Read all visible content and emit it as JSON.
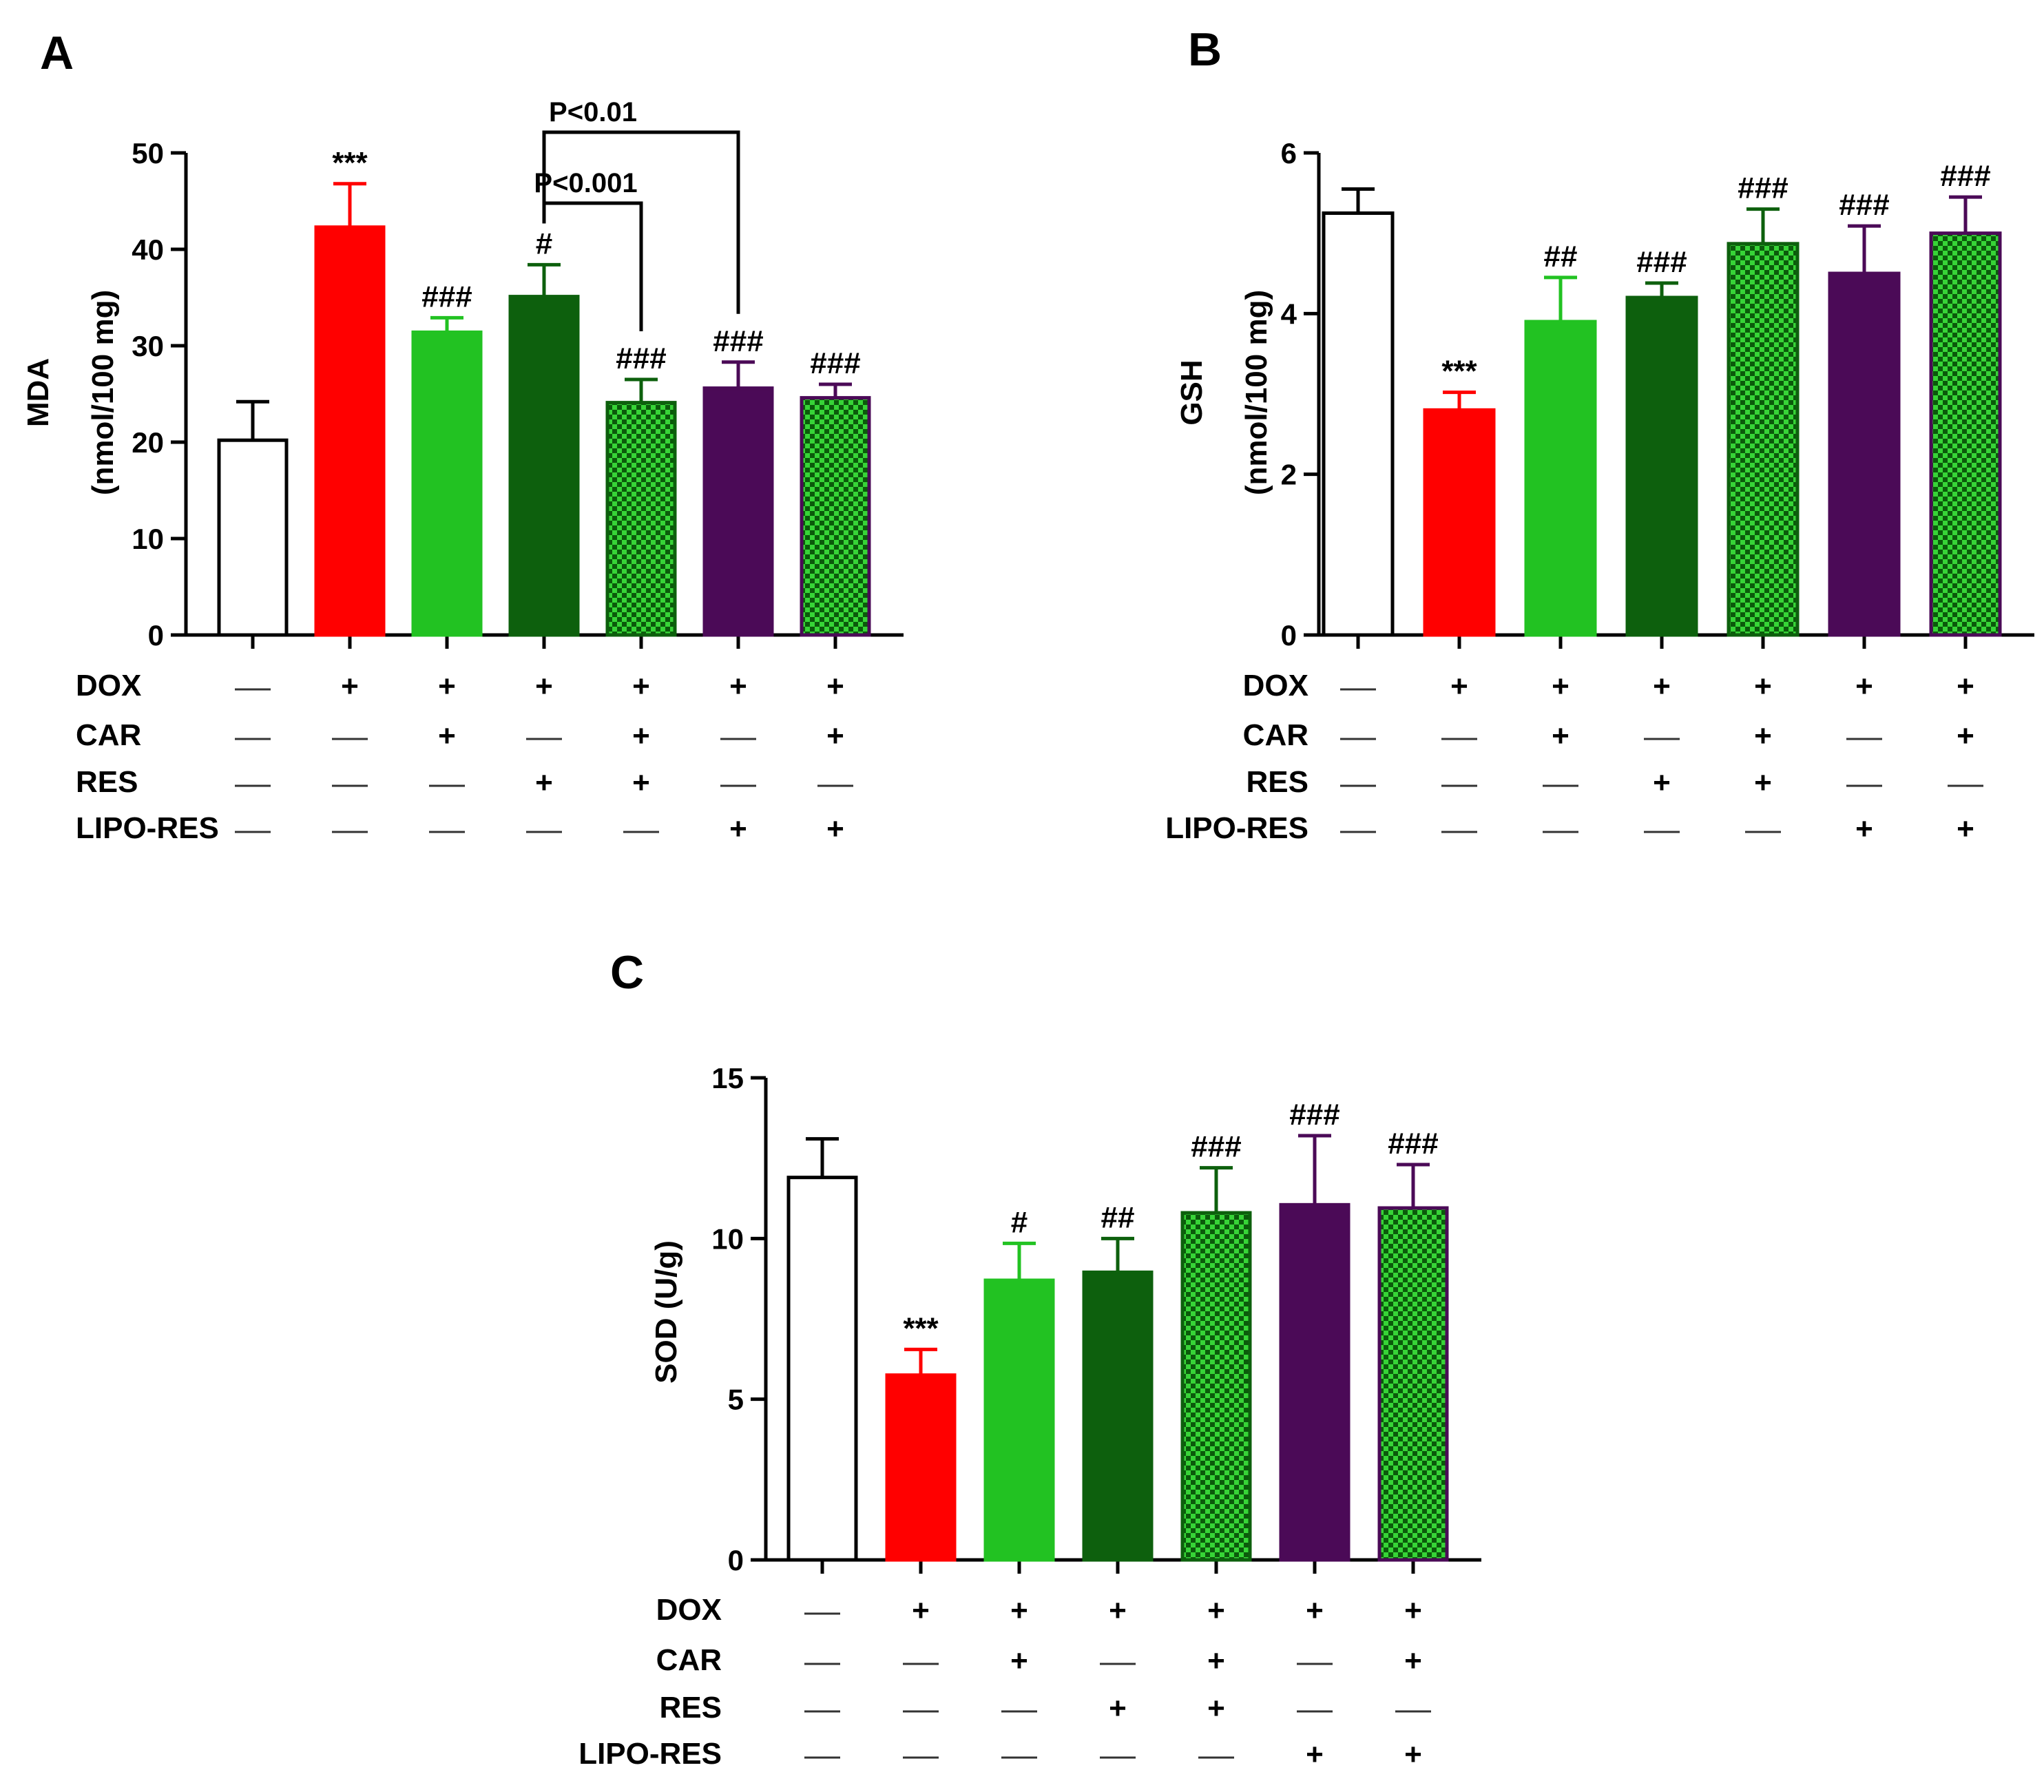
{
  "chart_data": [
    {
      "panel": "A",
      "type": "bar",
      "ylabel": "MDA",
      "ylabel_unit": "(nmol/100 mg)",
      "ylim": [
        0,
        50
      ],
      "yticks": [
        "0",
        "10",
        "20",
        "30",
        "40",
        "50"
      ],
      "values": [
        20.2,
        42.3,
        31.4,
        35.1,
        24.1,
        25.6,
        24.6
      ],
      "errors": [
        4.0,
        4.5,
        1.5,
        3.3,
        2.4,
        2.7,
        1.4
      ],
      "significance": [
        "",
        "***",
        "###",
        "#",
        "###",
        "###",
        "###"
      ],
      "comparisons": [
        {
          "from": 3,
          "to": 4,
          "label": "P<0.001"
        },
        {
          "from": 3,
          "to": 5,
          "label": "P<0.01"
        }
      ]
    },
    {
      "panel": "B",
      "type": "bar",
      "ylabel": "GSH",
      "ylabel_unit": "(nmol/100 mg)",
      "ylim": [
        0,
        6
      ],
      "yticks": [
        "0",
        "2",
        "4",
        "6"
      ],
      "values": [
        5.25,
        2.8,
        3.9,
        4.2,
        4.87,
        4.5,
        5.0
      ],
      "errors": [
        0.3,
        0.22,
        0.55,
        0.18,
        0.43,
        0.59,
        0.45
      ],
      "significance": [
        "",
        "***",
        "##",
        "###",
        "###",
        "###",
        "###"
      ],
      "comparisons": []
    },
    {
      "panel": "C",
      "type": "bar",
      "ylabel": "SOD (U/g)",
      "ylabel_unit": "",
      "ylim": [
        0,
        15
      ],
      "yticks": [
        "0",
        "5",
        "10",
        "15"
      ],
      "values": [
        11.9,
        5.75,
        8.7,
        8.95,
        10.8,
        11.05,
        10.95
      ],
      "errors": [
        1.2,
        0.8,
        1.15,
        1.05,
        1.4,
        2.15,
        1.35
      ],
      "significance": [
        "",
        "***",
        "#",
        "##",
        "###",
        "###",
        "###"
      ],
      "comparisons": []
    }
  ],
  "groups": [
    {
      "fill": "#ffffff",
      "stroke": "#000000",
      "pattern": false
    },
    {
      "fill": "#ff0000",
      "stroke": "#ff0000",
      "pattern": false
    },
    {
      "fill": "#22c222",
      "stroke": "#22c222",
      "pattern": false
    },
    {
      "fill": "#0d600d",
      "stroke": "#0d600d",
      "pattern": false
    },
    {
      "fill": "#1e9a1e",
      "stroke": "#0d600d",
      "pattern": true
    },
    {
      "fill": "#4b0a57",
      "stroke": "#4b0a57",
      "pattern": false
    },
    {
      "fill": "#2ad12a",
      "stroke": "#4b0a57",
      "pattern": true
    }
  ],
  "treatments": [
    {
      "label": "DOX",
      "marks": [
        "—",
        "+",
        "+",
        "+",
        "+",
        "+",
        "+"
      ]
    },
    {
      "label": "CAR",
      "marks": [
        "—",
        "—",
        "+",
        "—",
        "+",
        "—",
        "+"
      ]
    },
    {
      "label": "RES",
      "marks": [
        "—",
        "—",
        "—",
        "+",
        "+",
        "—",
        "—"
      ]
    },
    {
      "label": "LIPO-RES",
      "marks": [
        "—",
        "—",
        "—",
        "—",
        "—",
        "+",
        "+"
      ]
    }
  ]
}
